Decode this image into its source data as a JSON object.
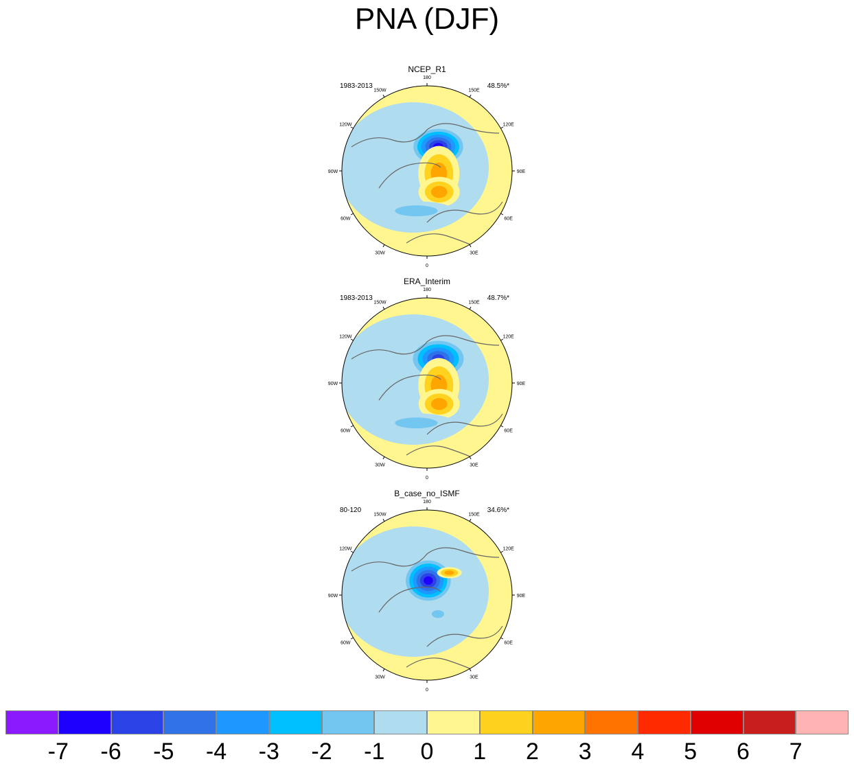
{
  "title": "PNA (DJF)",
  "panels": [
    {
      "title": "NCEP_R1",
      "period": "1983-2013",
      "variance": "48.5%*",
      "centers": [
        {
          "lon": 155,
          "colat": 22,
          "value": -6.2,
          "rx": 42,
          "ry": 30
        },
        {
          "lon": 78,
          "colat": 10,
          "value": 2.4,
          "rx": 30,
          "ry": 40
        },
        {
          "lon": 30,
          "colat": 20,
          "value": 2.8,
          "rx": 30,
          "ry": 22
        },
        {
          "lon": -15,
          "colat": 34,
          "value": -1.6,
          "rx": 55,
          "ry": 14
        }
      ]
    },
    {
      "title": "ERA_Interim",
      "period": "1983-2013",
      "variance": "48.7%*",
      "centers": [
        {
          "lon": 155,
          "colat": 22,
          "value": -6.0,
          "rx": 44,
          "ry": 31
        },
        {
          "lon": 78,
          "colat": 10,
          "value": 2.5,
          "rx": 30,
          "ry": 40
        },
        {
          "lon": 30,
          "colat": 20,
          "value": 2.9,
          "rx": 30,
          "ry": 22
        },
        {
          "lon": -15,
          "colat": 34,
          "value": -1.7,
          "rx": 55,
          "ry": 14
        }
      ]
    },
    {
      "title": "B_case_no_ISMF",
      "period": "80-120",
      "variance": "34.6%*",
      "centers": [
        {
          "lon": 175,
          "colat": 12,
          "value": -6.8,
          "rx": 38,
          "ry": 34
        },
        {
          "lon": 135,
          "colat": 26,
          "value": 2.2,
          "rx": 18,
          "ry": 8
        },
        {
          "lon": 30,
          "colat": 18,
          "value": -1.4,
          "rx": 16,
          "ry": 10
        }
      ]
    }
  ],
  "lon_labels": [
    "180",
    "150E",
    "120E",
    "90E",
    "60E",
    "30E",
    "0",
    "30W",
    "60W",
    "90W",
    "120W",
    "150W"
  ],
  "colorbar": {
    "ticks": [
      "-7",
      "-6",
      "-5",
      "-4",
      "-3",
      "-2",
      "-1",
      "0",
      "1",
      "2",
      "3",
      "4",
      "5",
      "6",
      "7"
    ],
    "colors": [
      "#8c1aff",
      "#1e00ff",
      "#2b42e6",
      "#3073e9",
      "#1e98ff",
      "#00bfff",
      "#73c6f0",
      "#b0dcf0",
      "#fff68f",
      "#ffd21f",
      "#ffa500",
      "#ff7300",
      "#ff2a00",
      "#e10000",
      "#c81e1e",
      "#ffb4b4"
    ]
  }
}
